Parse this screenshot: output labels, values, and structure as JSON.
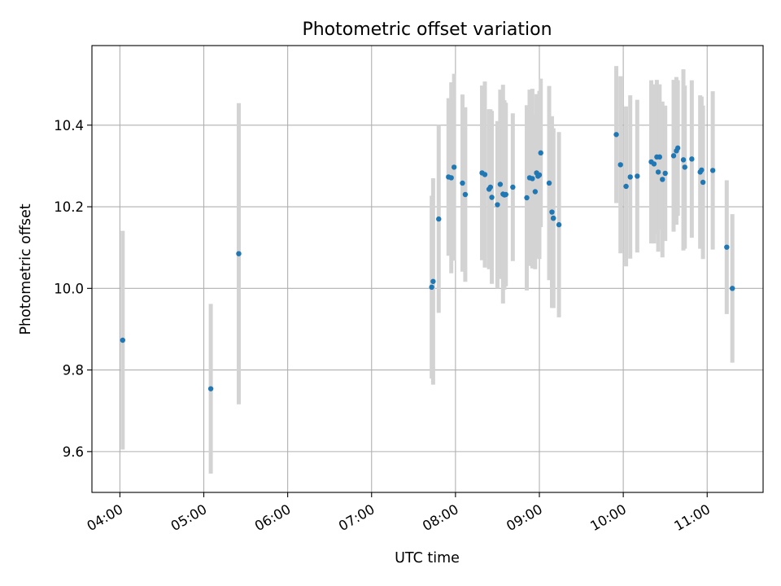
{
  "chart_data": {
    "type": "scatter",
    "title": "Photometric offset variation",
    "xlabel": "UTC time",
    "ylabel": "Photometric offset",
    "x_axis": "time",
    "xlim": [
      "03:40",
      "11:40"
    ],
    "ylim": [
      9.5,
      10.595
    ],
    "x_ticks": [
      "04:00",
      "05:00",
      "06:00",
      "07:00",
      "08:00",
      "09:00",
      "10:00",
      "11:00"
    ],
    "y_ticks": [
      9.6,
      9.8,
      10.0,
      10.2,
      10.4
    ],
    "grid": true,
    "colors": {
      "points": "#1f77b4",
      "errorbars": "#d3d3d3"
    },
    "series": [
      {
        "x": [
          "04:02",
          "05:05",
          "05:25",
          "07:43",
          "07:44",
          "07:48",
          "07:55",
          "07:57",
          "07:59",
          "08:05",
          "08:07",
          "08:19",
          "08:21",
          "08:24",
          "08:25",
          "08:26",
          "08:30",
          "08:32",
          "08:34",
          "08:35",
          "08:36",
          "08:41",
          "08:51",
          "08:53",
          "08:55",
          "08:57",
          "08:58",
          "08:59",
          "09:00",
          "09:01",
          "09:07",
          "09:09",
          "09:10",
          "09:10",
          "09:14",
          "09:55",
          "09:58",
          "10:02",
          "10:05",
          "10:10",
          "10:20",
          "10:22",
          "10:24",
          "10:25",
          "10:26",
          "10:28",
          "10:30",
          "10:36",
          "10:38",
          "10:39",
          "10:43",
          "10:44",
          "10:49",
          "10:55",
          "10:56",
          "10:57",
          "11:04",
          "11:14",
          "11:18"
        ],
        "y": [
          9.873,
          9.754,
          10.085,
          10.003,
          10.017,
          10.17,
          10.273,
          10.271,
          10.297,
          10.258,
          10.23,
          10.283,
          10.279,
          10.243,
          10.248,
          10.223,
          10.205,
          10.255,
          10.231,
          10.229,
          10.23,
          10.248,
          10.222,
          10.271,
          10.269,
          10.237,
          10.283,
          10.275,
          10.278,
          10.332,
          10.258,
          10.187,
          10.172,
          10.172,
          10.156,
          10.377,
          10.303,
          10.25,
          10.273,
          10.275,
          10.31,
          10.305,
          10.322,
          10.285,
          10.322,
          10.267,
          10.282,
          10.325,
          10.337,
          10.344,
          10.315,
          10.297,
          10.317,
          10.285,
          10.29,
          10.26,
          10.289,
          10.101,
          10.0
        ],
        "yerr": [
          0.268,
          0.208,
          0.369,
          0.224,
          0.253,
          0.23,
          0.193,
          0.234,
          0.229,
          0.217,
          0.214,
          0.214,
          0.228,
          0.196,
          0.191,
          0.212,
          0.205,
          0.232,
          0.268,
          0.232,
          0.225,
          0.181,
          0.227,
          0.216,
          0.22,
          0.19,
          0.193,
          0.2,
          0.206,
          0.182,
          0.238,
          0.235,
          0.22,
          0.22,
          0.227,
          0.168,
          0.217,
          0.196,
          0.2,
          0.187,
          0.2,
          0.195,
          0.189,
          0.195,
          0.178,
          0.191,
          0.166,
          0.186,
          0.181,
          0.166,
          0.222,
          0.2,
          0.193,
          0.188,
          0.18,
          0.188,
          0.194,
          0.164,
          0.182
        ]
      }
    ]
  }
}
